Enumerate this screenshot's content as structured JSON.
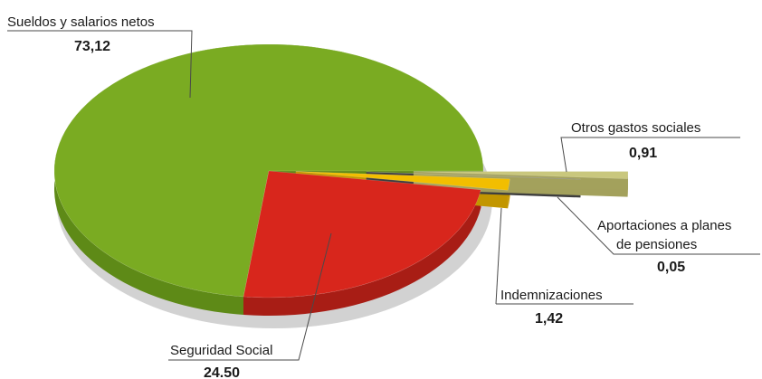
{
  "chart_data": {
    "type": "pie",
    "categories": [
      "Sueldos y salarios netos",
      "Seguridad Social",
      "Indemnizaciones",
      "Aportaciones a planes de pensiones",
      "Otros gastos sociales"
    ],
    "values": [
      73.12,
      24.5,
      1.42,
      0.05,
      0.91
    ],
    "value_labels": [
      "73,12",
      "24.50",
      "1,42",
      "0,05",
      "0,91"
    ],
    "label_lines": [
      [
        "Sueldos y salarios netos"
      ],
      [
        "Seguridad Social"
      ],
      [
        "Indemnizaciones"
      ],
      [
        "Aportaciones a planes",
        "de pensiones"
      ],
      [
        "Otros gastos sociales"
      ]
    ],
    "colors": [
      "#7aab22",
      "#d8261c",
      "#f2be00",
      "#5e5e5e",
      "#c9c77d"
    ],
    "side_colors": [
      "#5e8a17",
      "#a81d15",
      "#c29600",
      "#3e3e3e",
      "#a3a15c"
    ],
    "style": "3d-exploded",
    "legend": "callout-labels"
  }
}
